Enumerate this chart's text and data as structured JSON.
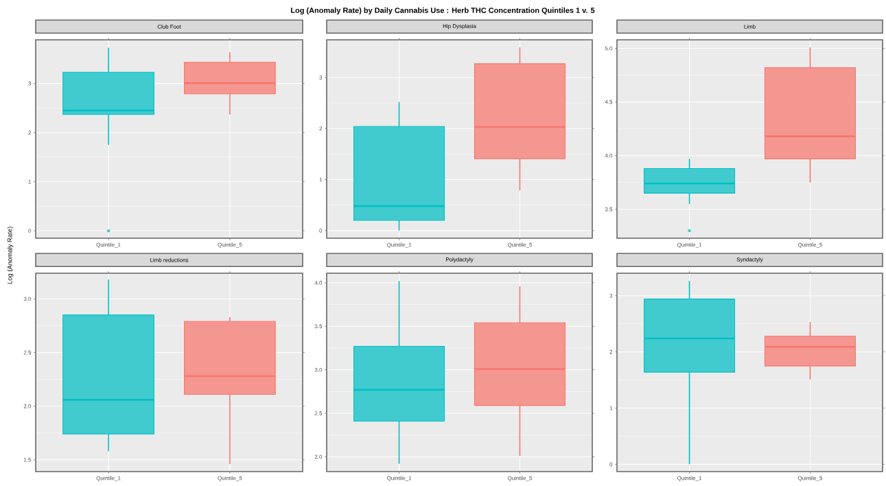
{
  "chart_data": [
    {
      "type": "box",
      "ylabel": "Log (Anomaly Rate)",
      "subtitle": "Club Foot",
      "categories": [
        "Quintile_1",
        "Quintile_5"
      ],
      "colors": [
        "#00bfc4",
        "#f8766d"
      ],
      "ylim": [
        -0.15,
        3.89
      ],
      "yticks": [
        0,
        1,
        2,
        3
      ],
      "grid": true,
      "boxes": [
        {
          "low": 1.75,
          "q1": 2.37,
          "median": 2.45,
          "q3": 3.23,
          "high": 3.73,
          "outliers": [
            0
          ]
        },
        {
          "low": 2.37,
          "q1": 2.79,
          "median": 3.01,
          "q3": 3.43,
          "high": 3.64
        }
      ]
    },
    {
      "type": "box",
      "title": "Log (Anomaly Rate) by Daily Cannabis Use : Herb THC Concentration Quintiles 1 v. 5",
      "subtitle": "Hip Dysplasia",
      "categories": [
        "Quintile_1",
        "Quintile_5"
      ],
      "colors": [
        "#00bfc4",
        "#f8766d"
      ],
      "ylim": [
        -0.15,
        3.74
      ],
      "yticks": [
        0,
        1,
        2,
        3
      ],
      "grid": true,
      "boxes": [
        {
          "low": 0,
          "q1": 0.2,
          "median": 0.48,
          "q3": 2.04,
          "high": 2.52
        },
        {
          "low": 0.79,
          "q1": 1.41,
          "median": 2.03,
          "q3": 3.27,
          "high": 3.59
        }
      ]
    },
    {
      "type": "box",
      "subtitle": "Limb",
      "categories": [
        "Quintile_1",
        "Quintile_5"
      ],
      "colors": [
        "#00bfc4",
        "#f8766d"
      ],
      "ylim": [
        3.23,
        5.08
      ],
      "yticks": [
        {
          "value": 3.5,
          "label": "3.5"
        },
        {
          "value": 4,
          "label": "4.0"
        },
        {
          "value": 4.5,
          "label": "4.5"
        },
        {
          "value": 5,
          "label": "5.0"
        }
      ],
      "grid": true,
      "boxes": [
        {
          "low": 3.55,
          "q1": 3.65,
          "median": 3.74,
          "q3": 3.88,
          "high": 3.97,
          "outliers": [
            3.3
          ]
        },
        {
          "low": 3.75,
          "q1": 3.97,
          "median": 4.18,
          "q3": 4.82,
          "high": 5.01
        }
      ]
    },
    {
      "type": "box",
      "subtitle": "Limb reductions",
      "categories": [
        "Quintile_1",
        "Quintile_5"
      ],
      "colors": [
        "#00bfc4",
        "#f8766d"
      ],
      "ylim": [
        1.39,
        3.24
      ],
      "yticks": [
        1.5,
        {
          "value": 2,
          "label": "2.0"
        },
        2.5,
        {
          "value": 3,
          "label": "3.0"
        }
      ],
      "grid": true,
      "boxes": [
        {
          "low": 1.58,
          "q1": 1.74,
          "median": 2.06,
          "q3": 2.85,
          "high": 3.18
        },
        {
          "low": 1.46,
          "q1": 2.11,
          "median": 2.28,
          "q3": 2.79,
          "high": 2.83
        }
      ]
    },
    {
      "type": "box",
      "subtitle": "Polydactyly",
      "categories": [
        "Quintile_1",
        "Quintile_5"
      ],
      "colors": [
        "#00bfc4",
        "#f8766d"
      ],
      "ylim": [
        1.83,
        4.11
      ],
      "yticks": [
        {
          "value": 2,
          "label": "2.0"
        },
        2.5,
        {
          "value": 3,
          "label": "3.0"
        },
        3.5,
        {
          "value": 4,
          "label": "4.0"
        }
      ],
      "grid": true,
      "boxes": [
        {
          "low": 1.92,
          "q1": 2.41,
          "median": 2.77,
          "q3": 3.27,
          "high": 4.02
        },
        {
          "low": 2.01,
          "q1": 2.59,
          "median": 3.01,
          "q3": 3.54,
          "high": 3.96
        }
      ]
    },
    {
      "type": "box",
      "subtitle": "Syndactyly",
      "categories": [
        "Quintile_1",
        "Quintile_5"
      ],
      "colors": [
        "#00bfc4",
        "#f8766d"
      ],
      "ylim": [
        -0.13,
        3.4
      ],
      "yticks": [
        0,
        1,
        2,
        3
      ],
      "grid": true,
      "boxes": [
        {
          "low": 0,
          "q1": 1.64,
          "median": 2.24,
          "q3": 2.94,
          "high": 3.26
        },
        {
          "low": 1.51,
          "q1": 1.75,
          "median": 2.09,
          "q3": 2.28,
          "high": 2.53
        }
      ]
    }
  ]
}
